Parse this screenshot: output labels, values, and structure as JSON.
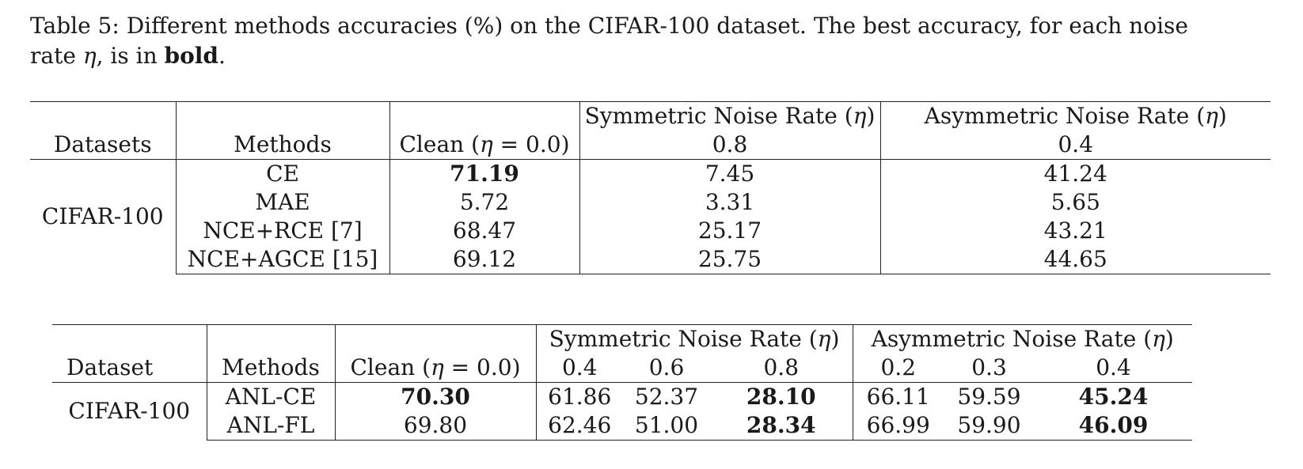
{
  "caption": {
    "label": "Table 5:",
    "text_a": " Different methods accuracies (%) on the CIFAR-100 dataset.  The best accuracy, for each noise rate ",
    "eta": "η",
    "text_b": ", is in ",
    "bold_word": "bold",
    "end": "."
  },
  "table1": {
    "header": {
      "datasets": "Datasets",
      "methods": "Methods",
      "clean_prefix": "Clean (",
      "clean_eta": "η",
      "clean_suffix": " = 0.0)",
      "sym_prefix": "Symmetric Noise Rate (",
      "sym_eta": "η",
      "sym_suffix": ")",
      "asym_prefix": "Asymmetric Noise Rate (",
      "asym_eta": "η",
      "asym_suffix": ")",
      "sym_rate": "0.8",
      "asym_rate": "0.4"
    },
    "dataset": "CIFAR-100",
    "rows": [
      {
        "method": "CE",
        "clean": "71.19",
        "sym": "7.45",
        "asym": "41.24"
      },
      {
        "method": "MAE",
        "clean": "5.72",
        "sym": "3.31",
        "asym": "5.65"
      },
      {
        "method": "NCE+RCE [7]",
        "clean": "68.47",
        "sym": "25.17",
        "asym": "43.21"
      },
      {
        "method": "NCE+AGCE [15]",
        "clean": "69.12",
        "sym": "25.75",
        "asym": "44.65"
      }
    ]
  },
  "table2": {
    "header": {
      "dataset": "Dataset",
      "methods": "Methods",
      "clean_prefix": "Clean (",
      "clean_eta": "η",
      "clean_suffix": " = 0.0)",
      "sym_prefix": "Symmetric Noise Rate (",
      "sym_eta": "η",
      "sym_suffix": ")",
      "asym_prefix": "Asymmetric Noise Rate (",
      "asym_eta": "η",
      "asym_suffix": ")",
      "sym_rates": [
        "0.4",
        "0.6",
        "0.8"
      ],
      "asym_rates": [
        "0.2",
        "0.3",
        "0.4"
      ]
    },
    "dataset": "CIFAR-100",
    "rows": [
      {
        "method": "ANL-CE",
        "clean": "70.30",
        "sym": [
          "61.86",
          "52.37",
          "28.10"
        ],
        "asym": [
          "66.11",
          "59.59",
          "45.24"
        ]
      },
      {
        "method": "ANL-FL",
        "clean": "69.80",
        "sym": [
          "62.46",
          "51.00",
          "28.34"
        ],
        "asym": [
          "66.99",
          "59.90",
          "46.09"
        ]
      }
    ]
  }
}
